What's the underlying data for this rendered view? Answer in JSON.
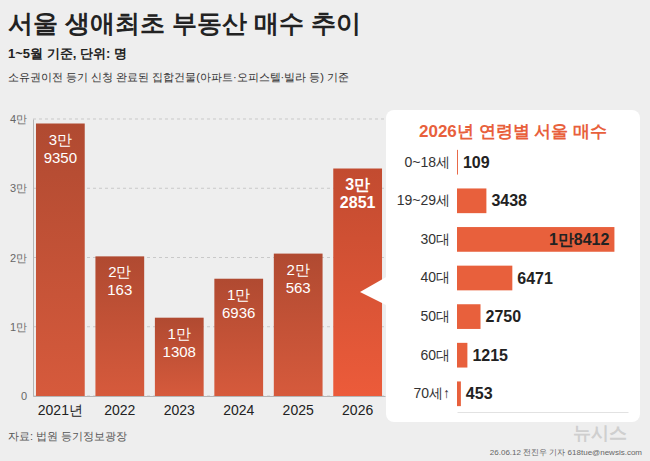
{
  "chart_data": [
    {
      "type": "bar",
      "title": "서울 생애최초 부동산 매수 추이",
      "subtitle": "1~5월 기준, 단위: 명",
      "annotations": [
        "소유권이전 등기 신청 완료된 집합건물(아파트·오피스텔·빌라 등) 기준",
        "자료: 법원 등기정보광장",
        "26.06.12 전진우 기자 618tue@newsis.com",
        "뉴시스"
      ],
      "categories": [
        "2021년",
        "2022",
        "2023",
        "2024",
        "2025",
        "2026"
      ],
      "values": [
        39350,
        20163,
        11308,
        16936,
        20563,
        32851
      ],
      "value_labels": [
        "3만 9350",
        "2만 163",
        "1만 1308",
        "1만 6936",
        "2만 563",
        "3만 2851"
      ],
      "colors": [
        "#d65a3c",
        "#d65a3c",
        "#d65a3c",
        "#d65a3c",
        "#d65a3c",
        "#ec5b3a"
      ],
      "ylim": [
        0,
        40000
      ],
      "yticks": [
        0,
        {
          "value": 10000,
          "label": "1만"
        },
        {
          "value": 20000,
          "label": "2만"
        },
        {
          "value": 30000,
          "label": "3만"
        },
        {
          "value": 40000,
          "label": "4만"
        }
      ],
      "grid": true,
      "data_labels": true
    },
    {
      "type": "bar",
      "orientation": "horizontal",
      "title": "2026년 연령별 서울 매수",
      "categories": [
        "0~18세",
        "19~29세",
        "30대",
        "40대",
        "50대",
        "60대",
        "70세↑"
      ],
      "values": [
        109,
        3438,
        18412,
        6471,
        2750,
        1215,
        453
      ],
      "value_labels": [
        "109",
        "3438",
        "1만8412",
        "6471",
        "2750",
        "1215",
        "453"
      ],
      "color": "#e8603c",
      "xlim": [
        0,
        20000
      ],
      "data_labels": true,
      "tick_labels": "y"
    }
  ]
}
